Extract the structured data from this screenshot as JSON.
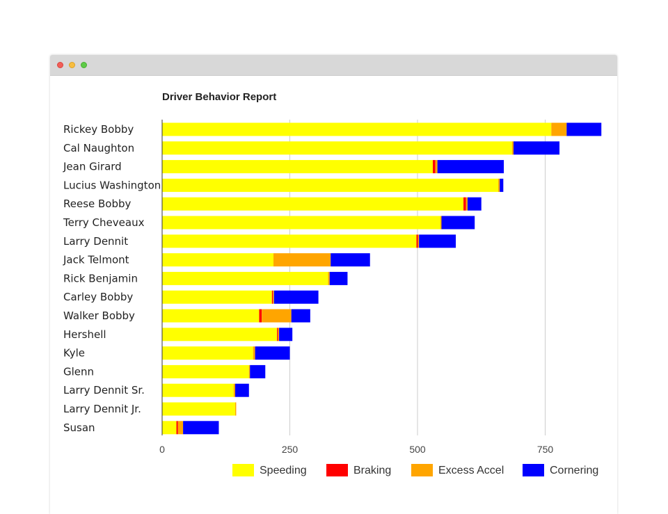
{
  "window": {
    "controls": {
      "close_icon": "close-dot",
      "minimize_icon": "minimize-dot",
      "zoom_icon": "zoom-dot"
    }
  },
  "chart_data": {
    "type": "bar",
    "orientation": "horizontal",
    "stacked": true,
    "title": "Driver Behavior Report",
    "xlabel": "",
    "ylabel": "",
    "xlim": [
      0,
      870
    ],
    "x_ticks": [
      0,
      250,
      500,
      750
    ],
    "x_tick_labels": [
      "0",
      "250",
      "500",
      "750"
    ],
    "grid": "vertical",
    "legend_position": "bottom-right",
    "categories": [
      "Rickey Bobby",
      "Cal Naughton",
      "Jean Girard",
      "Lucius Washington",
      "Reese Bobby",
      "Terry Cheveaux",
      "Larry Dennit",
      "Jack Telmont",
      "Rick Benjamin",
      "Carley Bobby",
      "Walker Bobby",
      "Hershell",
      "Kyle",
      "Glenn",
      "Larry Dennit Sr.",
      "Larry Dennit Jr.",
      "Susan"
    ],
    "series": [
      {
        "name": "Speeding",
        "color": "#ffff00",
        "values": [
          762,
          685,
          530,
          658,
          590,
          545,
          498,
          218,
          325,
          215,
          190,
          225,
          178,
          170,
          140,
          143,
          28
        ]
      },
      {
        "name": "Braking",
        "color": "#ff0000",
        "values": [
          0,
          0,
          5,
          0,
          5,
          0,
          3,
          0,
          0,
          2,
          5,
          2,
          0,
          0,
          0,
          0,
          3
        ]
      },
      {
        "name": "Excess Accel",
        "color": "#ffa500",
        "values": [
          30,
          3,
          4,
          3,
          3,
          2,
          2,
          112,
          3,
          2,
          58,
          2,
          4,
          2,
          3,
          2,
          10
        ]
      },
      {
        "name": "Cornering",
        "color": "#0000ff",
        "values": [
          68,
          90,
          130,
          7,
          27,
          65,
          72,
          77,
          35,
          87,
          37,
          26,
          68,
          30,
          27,
          0,
          70
        ]
      }
    ]
  }
}
